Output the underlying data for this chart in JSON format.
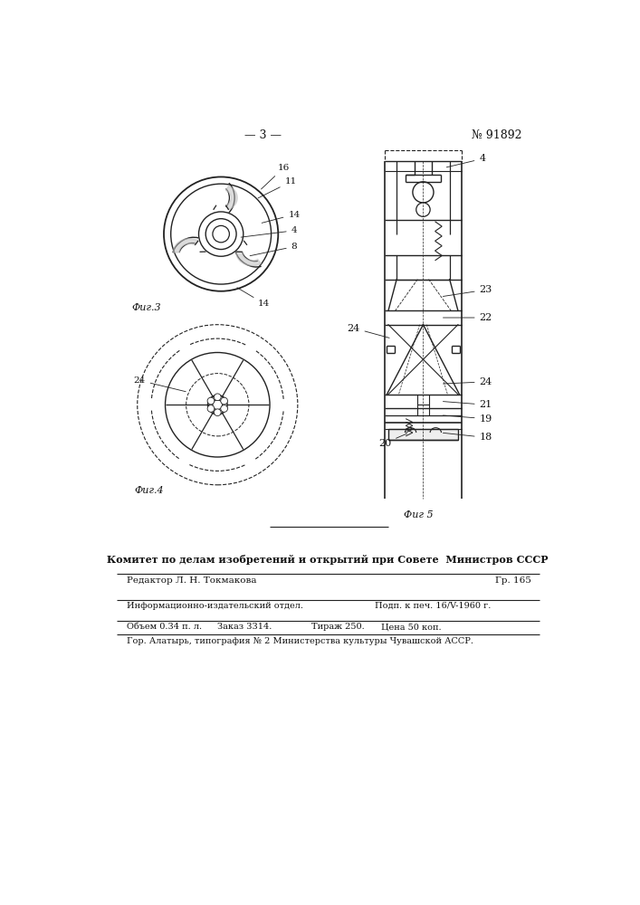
{
  "page_num": "— 3 —",
  "patent_num": "№ 91892",
  "fig3_label": "Фиг.3",
  "fig4_label": "Фиг.4",
  "fig5_label": "Фиг 5",
  "header_bold": "Комитет по делам изобретений и открытий при Совете  Министров СССР",
  "row1_left": "Редактор Л. Н. Токмакова",
  "row1_right": "Гр. 165",
  "row2_col1": "Информационно-издательский отдел.",
  "row2_col2": "Подп. к печ. 16/V-1960 г.",
  "row3_col1": "Объем 0.34 п. л.",
  "row3_col2": "Заказ 3314.",
  "row3_col3": "Тираж 250.",
  "row3_col4": "Цена 50 коп.",
  "footer": "Гор. Алатырь, типография № 2 Министерства культуры Чувашской АССР.",
  "bg_color": "#ffffff",
  "line_color": "#222222",
  "text_color": "#111111"
}
